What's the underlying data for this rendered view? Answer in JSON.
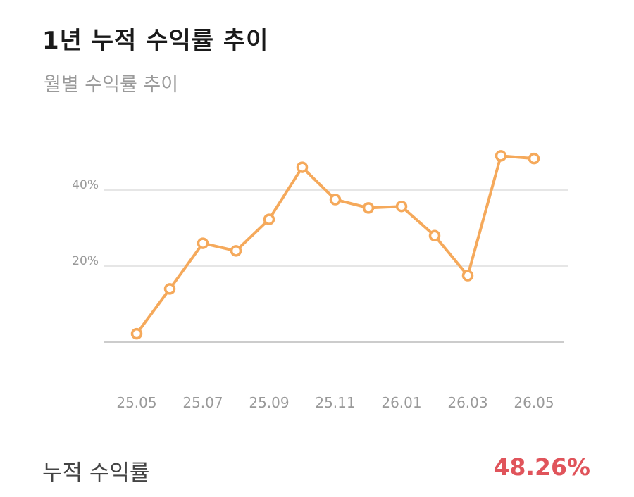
{
  "header": {
    "title": "1년 누적 수익률 추이",
    "subtitle": "월별 수익률 추이"
  },
  "footer": {
    "label": "누적 수익률",
    "value": "48.26%"
  },
  "colors": {
    "line": "#f5a95b",
    "point_fill": "#ffffff",
    "grid": "#cccccc",
    "axis": "#bbbbbb",
    "tick_text": "#999999",
    "title": "#1a1a1a",
    "subtitle": "#9a9a9a",
    "accent_value": "#e0545b"
  },
  "chart_data": {
    "type": "line",
    "title": "",
    "xlabel": "",
    "ylabel": "",
    "x": [
      "25.05",
      "25.06",
      "25.07",
      "25.08",
      "25.09",
      "25.10",
      "25.11",
      "25.12",
      "26.01",
      "26.02",
      "26.03",
      "26.04",
      "26.05"
    ],
    "x_tick_labels": [
      "25.05",
      "25.07",
      "25.09",
      "25.11",
      "26.01",
      "26.03",
      "26.05"
    ],
    "y_tick_labels": [
      "20%",
      "40%"
    ],
    "y_ticks": [
      20,
      40
    ],
    "ylim": [
      0,
      56
    ],
    "grid": true,
    "series": [
      {
        "values": [
          2.2,
          14.0,
          26.0,
          24.0,
          32.3,
          46.0,
          37.5,
          35.3,
          35.7,
          28.0,
          17.5,
          49.0,
          48.3
        ]
      }
    ]
  }
}
